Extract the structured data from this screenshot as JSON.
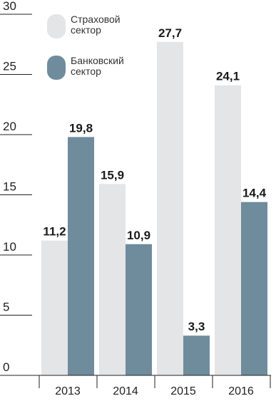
{
  "chart_data": {
    "type": "bar",
    "categories": [
      "2013",
      "2014",
      "2015",
      "2016"
    ],
    "series": [
      {
        "name": "Страховой сектор",
        "values": [
          11.2,
          15.9,
          27.7,
          24.1
        ],
        "labels": [
          "11,2",
          "15,9",
          "27,7",
          "24,1"
        ],
        "color": "#e4e5e7"
      },
      {
        "name": "Банковский сектор",
        "values": [
          19.8,
          10.9,
          3.3,
          14.4
        ],
        "labels": [
          "19,8",
          "10,9",
          "3,3",
          "14,4"
        ],
        "color": "#6f8c9c"
      }
    ],
    "legend": {
      "position": "top",
      "entries": [
        [
          "Страховой",
          "сектор"
        ],
        [
          "Банковский",
          "сектор"
        ]
      ]
    },
    "yticks": [
      "0",
      "5",
      "10",
      "15",
      "20",
      "25",
      "30"
    ],
    "ylim": [
      0,
      32
    ],
    "grid": false,
    "axis_color": "#222222"
  }
}
